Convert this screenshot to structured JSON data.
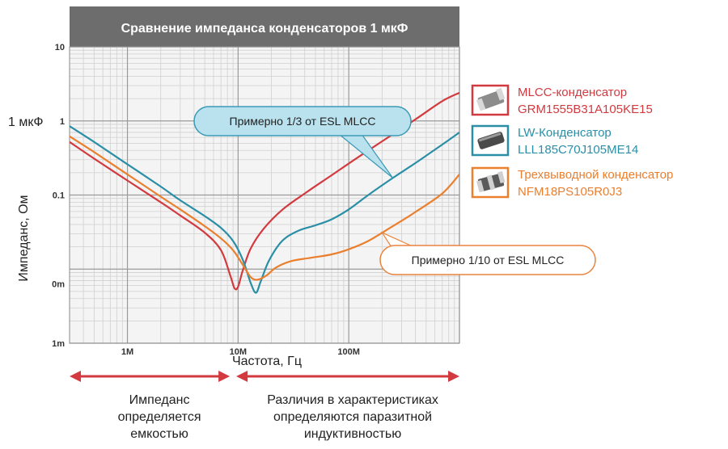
{
  "chart_data": {
    "type": "line",
    "title": "Сравнение импеданса конденсаторов 1 мкФ",
    "xlabel": "Частота, Гц",
    "ylabel": "Импеданс, Ом",
    "xscale": "log",
    "yscale": "log",
    "xlim": [
      300000,
      1000000000
    ],
    "ylim": [
      0.001,
      10
    ],
    "grid": true,
    "legend_position": "right",
    "x_tick_labels": [
      {
        "value": 1000000,
        "label": "1M"
      },
      {
        "value": 10000000,
        "label": "10M"
      },
      {
        "value": 100000000,
        "label": "100M"
      }
    ],
    "y_tick_labels": [
      {
        "value": 10,
        "label": "10"
      },
      {
        "value": 1,
        "label": "1"
      },
      {
        "value": 0.1,
        "label": "0.1"
      },
      {
        "value": 0.0063,
        "label": "0m"
      },
      {
        "value": 0.001,
        "label": "1m"
      }
    ],
    "y_side_label": {
      "value": 1,
      "label": "1 мкФ"
    },
    "series": [
      {
        "label_line1": "MLCC-конденсатор",
        "label_line2": "GRM1555B31A105KE15",
        "color": "#d23a3f",
        "icon": "mlcc-capacitor-icon",
        "points": [
          [
            300000,
            0.52
          ],
          [
            500000,
            0.31
          ],
          [
            1000000,
            0.157
          ],
          [
            2000000,
            0.08
          ],
          [
            3000000,
            0.053
          ],
          [
            5000000,
            0.031
          ],
          [
            7000000,
            0.018
          ],
          [
            8500000,
            0.0082
          ],
          [
            9300000,
            0.0055
          ],
          [
            10000000,
            0.0058
          ],
          [
            11000000,
            0.0095
          ],
          [
            13000000,
            0.019
          ],
          [
            17000000,
            0.035
          ],
          [
            25000000,
            0.063
          ],
          [
            40000000,
            0.105
          ],
          [
            70000000,
            0.185
          ],
          [
            120000000,
            0.32
          ],
          [
            200000000,
            0.53
          ],
          [
            400000000,
            1.05
          ],
          [
            700000000,
            1.85
          ],
          [
            1000000000,
            2.4
          ]
        ]
      },
      {
        "label_line1": "LW-Конденсатор",
        "label_line2": "LLL185C70J105ME14",
        "color": "#2a8fa6",
        "icon": "lw-capacitor-icon",
        "points": [
          [
            300000,
            0.85
          ],
          [
            500000,
            0.52
          ],
          [
            1000000,
            0.26
          ],
          [
            2000000,
            0.13
          ],
          [
            3000000,
            0.085
          ],
          [
            5000000,
            0.052
          ],
          [
            7000000,
            0.036
          ],
          [
            9000000,
            0.024
          ],
          [
            11000000,
            0.0135
          ],
          [
            13000000,
            0.0065
          ],
          [
            14500000,
            0.0048
          ],
          [
            16000000,
            0.0068
          ],
          [
            19000000,
            0.013
          ],
          [
            25000000,
            0.024
          ],
          [
            35000000,
            0.033
          ],
          [
            50000000,
            0.039
          ],
          [
            70000000,
            0.047
          ],
          [
            100000000,
            0.064
          ],
          [
            150000000,
            0.1
          ],
          [
            250000000,
            0.17
          ],
          [
            400000000,
            0.27
          ],
          [
            700000000,
            0.48
          ],
          [
            1000000000,
            0.7
          ]
        ]
      },
      {
        "label_line1": "Трехвыводной конденсатор",
        "label_line2": "NFM18PS105R0J3",
        "color": "#ea7f2d",
        "icon": "three-terminal-capacitor-icon",
        "points": [
          [
            300000,
            0.62
          ],
          [
            500000,
            0.38
          ],
          [
            1000000,
            0.19
          ],
          [
            2000000,
            0.095
          ],
          [
            3000000,
            0.064
          ],
          [
            5000000,
            0.038
          ],
          [
            7000000,
            0.026
          ],
          [
            9000000,
            0.018
          ],
          [
            11000000,
            0.0115
          ],
          [
            13000000,
            0.0078
          ],
          [
            15000000,
            0.0072
          ],
          [
            18000000,
            0.0082
          ],
          [
            22000000,
            0.0105
          ],
          [
            30000000,
            0.0128
          ],
          [
            45000000,
            0.0142
          ],
          [
            70000000,
            0.0158
          ],
          [
            100000000,
            0.0185
          ],
          [
            150000000,
            0.024
          ],
          [
            250000000,
            0.038
          ],
          [
            400000000,
            0.059
          ],
          [
            700000000,
            0.105
          ],
          [
            1000000000,
            0.19
          ]
        ]
      }
    ],
    "annotations": [
      {
        "text": "Примерно 1/3 от ESL MLCC",
        "target_series": 1,
        "target_x": 250000000,
        "fill": "#b9e1ee",
        "stroke": "#3c9ab5"
      },
      {
        "text": "Примерно 1/10 от ESL MLCC",
        "target_series": 2,
        "target_x": 200000000,
        "fill": "#ffffff",
        "stroke": "#e8843f"
      }
    ],
    "region_notes": [
      {
        "lines": [
          "Импеданс",
          "определяется",
          "емкостью"
        ],
        "x_from": 300000,
        "x_to": 9000000
      },
      {
        "lines": [
          "Различия в характеристиках",
          "определяются  паразитной",
          "индуктивностью"
        ],
        "x_from": 9000000,
        "x_to": 1000000000
      }
    ],
    "arrow_color": "#d23a3f"
  }
}
